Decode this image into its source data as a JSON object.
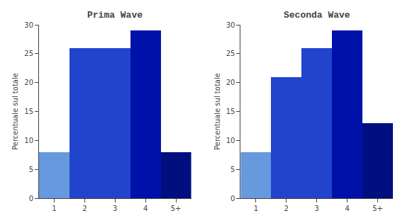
{
  "chart_data": [
    {
      "type": "bar",
      "title": "Prima Wave",
      "categories": [
        "1",
        "2",
        "3",
        "4",
        "5+"
      ],
      "values": [
        8,
        26,
        26,
        29,
        8
      ],
      "colors": [
        "#6699DD",
        "#2244CC",
        "#2244CC",
        "#0011AA",
        "#000E80"
      ],
      "ylabel": "Percentuale sul totale",
      "ylim": [
        0,
        30
      ],
      "yticks": [
        0,
        5,
        10,
        15,
        20,
        25,
        30
      ],
      "grid": false
    },
    {
      "type": "bar",
      "title": "Seconda Wave",
      "categories": [
        "1",
        "2",
        "3",
        "4",
        "5+"
      ],
      "values": [
        8,
        21,
        26,
        29,
        13
      ],
      "colors": [
        "#6699DD",
        "#2244CC",
        "#2244CC",
        "#0011AA",
        "#000E80"
      ],
      "ylabel": "Percentuale sul totale",
      "ylim": [
        0,
        30
      ],
      "yticks": [
        0,
        5,
        10,
        15,
        20,
        25,
        30
      ],
      "grid": false
    }
  ]
}
